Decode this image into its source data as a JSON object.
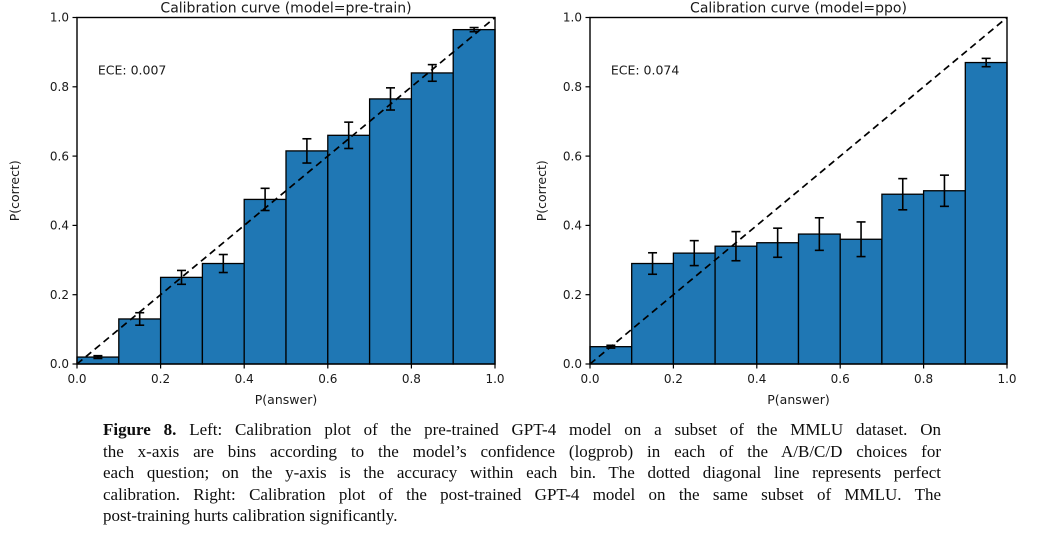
{
  "figure": {
    "caption": {
      "label": "Figure 8.",
      "lines": [
        "Left: Calibration plot of the pre-trained GPT-4 model on a subset of the MMLU dataset. On",
        "the x-axis are bins according to the model’s confidence (logprob) in each of the A/B/C/D choices for",
        "each question; on the y-axis is the accuracy within each bin. The dotted diagonal line represents perfect",
        "calibration. Right: Calibration plot of the post-trained GPT-4 model on the same subset of MMLU. The",
        "post-training hurts calibration significantly."
      ]
    }
  },
  "chart_data": [
    {
      "type": "bar",
      "title": "Calibration curve (model=pre-train)",
      "annotation": "ECE: 0.007",
      "xlabel": "P(answer)",
      "ylabel": "P(correct)",
      "xlim": [
        0.0,
        1.0
      ],
      "ylim": [
        0.0,
        1.0
      ],
      "xticks": [
        "0.0",
        "0.2",
        "0.4",
        "0.6",
        "0.8",
        "1.0"
      ],
      "yticks": [
        "0.0",
        "0.2",
        "0.4",
        "0.6",
        "0.8",
        "1.0"
      ],
      "grid": false,
      "legend": null,
      "diagonal": true,
      "bin_width": 0.1,
      "bin_starts": [
        0.0,
        0.1,
        0.2,
        0.3,
        0.4,
        0.5,
        0.6,
        0.7,
        0.8,
        0.9
      ],
      "values": [
        0.02,
        0.13,
        0.25,
        0.29,
        0.475,
        0.615,
        0.66,
        0.765,
        0.84,
        0.965
      ],
      "errors": [
        0.004,
        0.018,
        0.02,
        0.026,
        0.032,
        0.035,
        0.038,
        0.032,
        0.024,
        0.006
      ],
      "bar_color": "#1f77b4",
      "edge_color": "#000000"
    },
    {
      "type": "bar",
      "title": "Calibration curve (model=ppo)",
      "annotation": "ECE: 0.074",
      "xlabel": "P(answer)",
      "ylabel": "P(correct)",
      "xlim": [
        0.0,
        1.0
      ],
      "ylim": [
        0.0,
        1.0
      ],
      "xticks": [
        "0.0",
        "0.2",
        "0.4",
        "0.6",
        "0.8",
        "1.0"
      ],
      "yticks": [
        "0.0",
        "0.2",
        "0.4",
        "0.6",
        "0.8",
        "1.0"
      ],
      "grid": false,
      "legend": null,
      "diagonal": true,
      "bin_width": 0.1,
      "bin_starts": [
        0.0,
        0.1,
        0.2,
        0.3,
        0.4,
        0.5,
        0.6,
        0.7,
        0.8,
        0.9
      ],
      "values": [
        0.05,
        0.29,
        0.32,
        0.34,
        0.35,
        0.375,
        0.36,
        0.49,
        0.5,
        0.87
      ],
      "errors": [
        0.004,
        0.031,
        0.036,
        0.042,
        0.042,
        0.047,
        0.05,
        0.045,
        0.045,
        0.012
      ],
      "bar_color": "#1f77b4",
      "edge_color": "#000000"
    }
  ]
}
